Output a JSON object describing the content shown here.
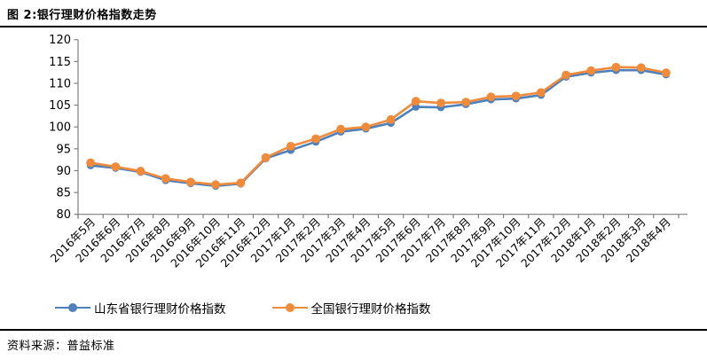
{
  "header": {
    "title": "图 2:银行理财价格指数走势"
  },
  "footer": {
    "source": "资料来源：普益标准"
  },
  "chart_data": {
    "type": "line",
    "title": "图 2:银行理财价格指数走势",
    "source": "资料来源：普益标准",
    "categories": [
      "2016年5月",
      "2016年6月",
      "2016年7月",
      "2016年8月",
      "2016年9月",
      "2016年10月",
      "2016年11月",
      "2016年12月",
      "2017年1月",
      "2017年2月",
      "2017年3月",
      "2017年4月",
      "2017年5月",
      "2017年6月",
      "2017年7月",
      "2017年8月",
      "2017年9月",
      "2017年10月",
      "2017年11月",
      "2017年12月",
      "2018年1月",
      "2018年2月",
      "2018年3月",
      "2018年4月"
    ],
    "series": [
      {
        "name": "山东省银行理财价格指数",
        "color": "#4E80BC",
        "values": [
          91.2,
          90.6,
          89.7,
          87.8,
          87.1,
          86.5,
          87.0,
          92.8,
          94.7,
          96.6,
          98.9,
          99.6,
          100.9,
          104.6,
          104.5,
          105.2,
          106.3,
          106.5,
          107.3,
          111.5,
          112.4,
          113.0,
          113.0,
          112.0
        ]
      },
      {
        "name": "全国银行理财价格指数",
        "color": "#F08B3C",
        "values": [
          91.8,
          90.9,
          89.9,
          88.2,
          87.4,
          86.8,
          87.2,
          93.0,
          95.6,
          97.3,
          99.5,
          100.0,
          101.7,
          105.9,
          105.5,
          105.7,
          106.9,
          107.1,
          107.9,
          111.9,
          112.9,
          113.7,
          113.6,
          112.4
        ]
      }
    ],
    "ylim": [
      80,
      120
    ],
    "ytick_step": 5,
    "xlabel": "",
    "ylabel": "",
    "grid": false,
    "legend_position": "bottom",
    "axis_color": "#7F7F7F"
  }
}
